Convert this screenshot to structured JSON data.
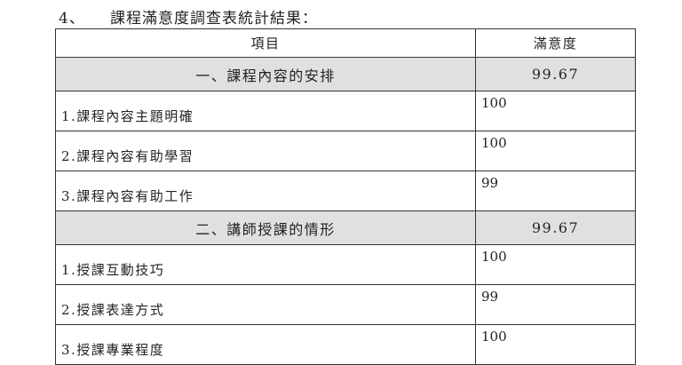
{
  "heading": {
    "number": "4、",
    "title": "課程滿意度調查表統計結果："
  },
  "table": {
    "headers": [
      "項目",
      "滿意度"
    ],
    "sections": [
      {
        "title": "一、課程內容的安排",
        "score": "99.67",
        "items": [
          {
            "label": "1.課程內容主題明確",
            "score": "100"
          },
          {
            "label": "2.課程內容有助學習",
            "score": "100"
          },
          {
            "label": "3.課程內容有助工作",
            "score": "99"
          }
        ]
      },
      {
        "title": "二、講師授課的情形",
        "score": "99.67",
        "items": [
          {
            "label": "1.授課互動技巧",
            "score": "100"
          },
          {
            "label": "2.授課表達方式",
            "score": "99"
          },
          {
            "label": "3.授課專業程度",
            "score": "100"
          }
        ]
      }
    ]
  }
}
